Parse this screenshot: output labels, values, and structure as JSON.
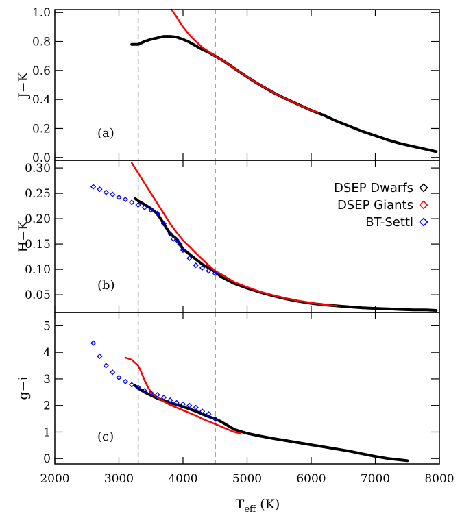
{
  "chart_data": {
    "type": "scatter",
    "x": {
      "label": "T",
      "label_sub": "eff",
      "label_unit": "(K)",
      "lim": [
        2000,
        8000
      ],
      "ticks": [
        "2000",
        "3000",
        "4000",
        "5000",
        "6000",
        "7000",
        "8000"
      ],
      "tick_values": [
        2000,
        3000,
        4000,
        5000,
        6000,
        7000,
        8000
      ]
    },
    "vlines": [
      3300,
      4500
    ],
    "legend": {
      "placement": "right, panel b",
      "entries": [
        {
          "label": "DSEP Dwarfs",
          "color": "#000000",
          "marker": "diamond"
        },
        {
          "label": "DSEP Giants",
          "color": "#ff0000",
          "marker": "diamond"
        },
        {
          "label": "BT-Settl",
          "color": "#0000ff",
          "marker": "diamond"
        }
      ]
    },
    "panels": [
      {
        "id": "a",
        "tag": "(a)",
        "ylabel": "J−K",
        "ylim": [
          -0.02,
          1.02
        ],
        "yticks": [
          "0.0",
          "0.2",
          "0.4",
          "0.6",
          "0.8",
          "1.0"
        ],
        "ytick_values": [
          0.0,
          0.2,
          0.4,
          0.6,
          0.8,
          1.0
        ],
        "series": [
          {
            "name": "DSEP Dwarfs",
            "color": "#000000",
            "points": [
              [
                3200,
                0.78
              ],
              [
                3300,
                0.78
              ],
              [
                3400,
                0.8
              ],
              [
                3500,
                0.815
              ],
              [
                3600,
                0.825
              ],
              [
                3700,
                0.835
              ],
              [
                3800,
                0.835
              ],
              [
                3900,
                0.83
              ],
              [
                4000,
                0.815
              ],
              [
                4100,
                0.795
              ],
              [
                4200,
                0.77
              ],
              [
                4300,
                0.745
              ],
              [
                4400,
                0.725
              ],
              [
                4500,
                0.7
              ],
              [
                4600,
                0.675
              ],
              [
                4700,
                0.645
              ],
              [
                4800,
                0.615
              ],
              [
                4900,
                0.585
              ],
              [
                5000,
                0.555
              ],
              [
                5200,
                0.5
              ],
              [
                5400,
                0.45
              ],
              [
                5600,
                0.405
              ],
              [
                5800,
                0.365
              ],
              [
                6000,
                0.325
              ],
              [
                6200,
                0.29
              ],
              [
                6400,
                0.25
              ],
              [
                6600,
                0.215
              ],
              [
                6800,
                0.18
              ],
              [
                7000,
                0.15
              ],
              [
                7200,
                0.12
              ],
              [
                7400,
                0.095
              ],
              [
                7600,
                0.075
              ],
              [
                7800,
                0.055
              ],
              [
                7950,
                0.04
              ]
            ]
          },
          {
            "name": "DSEP Giants",
            "color": "#ff0000",
            "points": [
              [
                3820,
                1.02
              ],
              [
                3900,
                0.97
              ],
              [
                4000,
                0.9
              ],
              [
                4100,
                0.845
              ],
              [
                4200,
                0.8
              ],
              [
                4300,
                0.76
              ],
              [
                4400,
                0.73
              ],
              [
                4500,
                0.7
              ],
              [
                4600,
                0.675
              ],
              [
                4700,
                0.645
              ],
              [
                4800,
                0.615
              ],
              [
                4900,
                0.585
              ],
              [
                5000,
                0.555
              ],
              [
                5200,
                0.5
              ],
              [
                5400,
                0.45
              ],
              [
                5600,
                0.405
              ],
              [
                5800,
                0.365
              ],
              [
                6000,
                0.325
              ],
              [
                6100,
                0.31
              ]
            ]
          }
        ]
      },
      {
        "id": "b",
        "tag": "(b)",
        "ylabel": "H−K",
        "ylim": [
          0.015,
          0.315
        ],
        "yticks": [
          "0.05",
          "0.10",
          "0.15",
          "0.20",
          "0.25",
          "0.30"
        ],
        "ytick_values": [
          0.05,
          0.1,
          0.15,
          0.2,
          0.25,
          0.3
        ],
        "series": [
          {
            "name": "DSEP Dwarfs",
            "color": "#000000",
            "points": [
              [
                3250,
                0.24
              ],
              [
                3300,
                0.235
              ],
              [
                3400,
                0.228
              ],
              [
                3500,
                0.22
              ],
              [
                3600,
                0.21
              ],
              [
                3700,
                0.19
              ],
              [
                3800,
                0.17
              ],
              [
                3900,
                0.16
              ],
              [
                4000,
                0.14
              ],
              [
                4100,
                0.13
              ],
              [
                4200,
                0.12
              ],
              [
                4300,
                0.11
              ],
              [
                4400,
                0.103
              ],
              [
                4500,
                0.095
              ],
              [
                4600,
                0.085
              ],
              [
                4800,
                0.072
              ],
              [
                5000,
                0.063
              ],
              [
                5200,
                0.055
              ],
              [
                5400,
                0.048
              ],
              [
                5600,
                0.042
              ],
              [
                5800,
                0.037
              ],
              [
                6000,
                0.033
              ],
              [
                6200,
                0.03
              ],
              [
                6400,
                0.028
              ],
              [
                6600,
                0.026
              ],
              [
                6800,
                0.024
              ],
              [
                7000,
                0.023
              ],
              [
                7200,
                0.022
              ],
              [
                7400,
                0.021
              ],
              [
                7600,
                0.02
              ],
              [
                7800,
                0.02
              ],
              [
                7950,
                0.019
              ]
            ]
          },
          {
            "name": "DSEP Giants",
            "color": "#ff0000",
            "points": [
              [
                3200,
                0.31
              ],
              [
                3300,
                0.29
              ],
              [
                3400,
                0.27
              ],
              [
                3500,
                0.25
              ],
              [
                3600,
                0.23
              ],
              [
                3700,
                0.21
              ],
              [
                3800,
                0.19
              ],
              [
                3900,
                0.173
              ],
              [
                4000,
                0.157
              ],
              [
                4100,
                0.145
              ],
              [
                4200,
                0.132
              ],
              [
                4300,
                0.12
              ],
              [
                4400,
                0.108
              ],
              [
                4500,
                0.097
              ],
              [
                4600,
                0.09
              ],
              [
                4800,
                0.075
              ],
              [
                5000,
                0.065
              ],
              [
                5200,
                0.056
              ],
              [
                5400,
                0.049
              ],
              [
                5600,
                0.043
              ],
              [
                5800,
                0.038
              ],
              [
                6000,
                0.034
              ],
              [
                6200,
                0.03
              ],
              [
                6400,
                0.028
              ]
            ]
          },
          {
            "name": "BT-Settl",
            "color": "#0000ff",
            "points": [
              [
                2600,
                0.263
              ],
              [
                2700,
                0.258
              ],
              [
                2800,
                0.252
              ],
              [
                2900,
                0.248
              ],
              [
                3000,
                0.242
              ],
              [
                3100,
                0.238
              ],
              [
                3200,
                0.232
              ],
              [
                3300,
                0.227
              ],
              [
                3400,
                0.222
              ],
              [
                3500,
                0.217
              ],
              [
                3600,
                0.21
              ],
              [
                3700,
                0.19
              ],
              [
                3800,
                0.17
              ],
              [
                3850,
                0.16
              ],
              [
                3900,
                0.158
              ],
              [
                3950,
                0.15
              ],
              [
                4000,
                0.138
              ],
              [
                4100,
                0.122
              ],
              [
                4200,
                0.108
              ],
              [
                4300,
                0.103
              ],
              [
                4400,
                0.097
              ],
              [
                4500,
                0.092
              ]
            ]
          }
        ]
      },
      {
        "id": "c",
        "tag": "(c)",
        "ylabel": "g−i",
        "ylim": [
          -0.2,
          5.5
        ],
        "yticks": [
          "0",
          "1",
          "2",
          "3",
          "4",
          "5"
        ],
        "ytick_values": [
          0,
          1,
          2,
          3,
          4,
          5
        ],
        "series": [
          {
            "name": "DSEP Dwarfs",
            "color": "#000000",
            "points": [
              [
                3250,
                2.75
              ],
              [
                3300,
                2.65
              ],
              [
                3400,
                2.5
              ],
              [
                3500,
                2.38
              ],
              [
                3600,
                2.27
              ],
              [
                3700,
                2.18
              ],
              [
                3800,
                2.1
              ],
              [
                3900,
                2.03
              ],
              [
                4000,
                1.95
              ],
              [
                4100,
                1.87
              ],
              [
                4200,
                1.78
              ],
              [
                4300,
                1.68
              ],
              [
                4400,
                1.58
              ],
              [
                4500,
                1.5
              ],
              [
                4600,
                1.38
              ],
              [
                4800,
                1.1
              ],
              [
                5000,
                0.95
              ],
              [
                5200,
                0.85
              ],
              [
                5400,
                0.76
              ],
              [
                5600,
                0.68
              ],
              [
                5800,
                0.6
              ],
              [
                6000,
                0.52
              ],
              [
                6200,
                0.44
              ],
              [
                6400,
                0.36
              ],
              [
                6600,
                0.28
              ],
              [
                6800,
                0.18
              ],
              [
                7000,
                0.08
              ],
              [
                7200,
                0.0
              ],
              [
                7400,
                -0.05
              ],
              [
                7500,
                -0.08
              ]
            ]
          },
          {
            "name": "DSEP Giants",
            "color": "#ff0000",
            "points": [
              [
                3100,
                3.8
              ],
              [
                3200,
                3.72
              ],
              [
                3300,
                3.5
              ],
              [
                3350,
                3.25
              ],
              [
                3400,
                2.95
              ],
              [
                3450,
                2.7
              ],
              [
                3500,
                2.5
              ],
              [
                3600,
                2.3
              ],
              [
                3700,
                2.15
              ],
              [
                3800,
                2.02
              ],
              [
                3900,
                1.92
              ],
              [
                4000,
                1.82
              ],
              [
                4100,
                1.72
              ],
              [
                4200,
                1.62
              ],
              [
                4300,
                1.5
              ],
              [
                4400,
                1.4
              ],
              [
                4500,
                1.3
              ],
              [
                4600,
                1.2
              ],
              [
                4700,
                1.1
              ],
              [
                4800,
                1.0
              ],
              [
                4900,
                0.95
              ]
            ]
          },
          {
            "name": "BT-Settl",
            "color": "#0000ff",
            "points": [
              [
                2600,
                4.35
              ],
              [
                2700,
                3.85
              ],
              [
                2800,
                3.5
              ],
              [
                2900,
                3.25
              ],
              [
                3000,
                3.05
              ],
              [
                3100,
                2.9
              ],
              [
                3200,
                2.78
              ],
              [
                3300,
                2.68
              ],
              [
                3400,
                2.55
              ],
              [
                3500,
                2.47
              ],
              [
                3600,
                2.4
              ],
              [
                3700,
                2.3
              ],
              [
                3800,
                2.2
              ],
              [
                3900,
                2.1
              ],
              [
                4000,
                2.05
              ],
              [
                4100,
                2.0
              ],
              [
                4200,
                1.92
              ],
              [
                4300,
                1.78
              ],
              [
                4400,
                1.68
              ],
              [
                4500,
                1.5
              ]
            ]
          }
        ]
      }
    ]
  }
}
